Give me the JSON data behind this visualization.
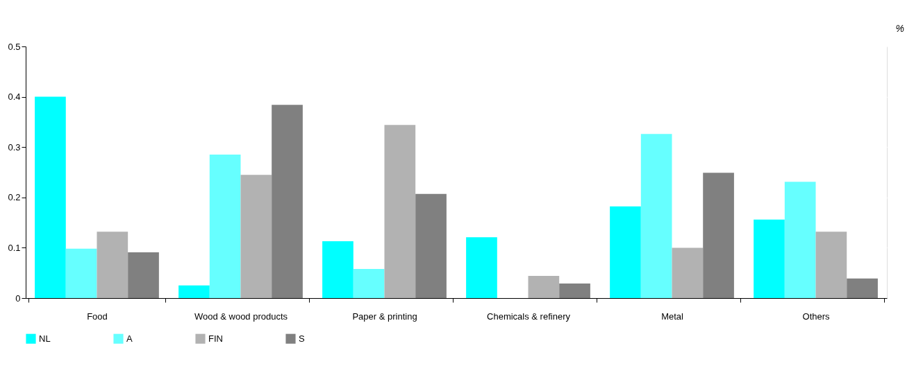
{
  "chart_data": {
    "type": "bar",
    "categories": [
      "Food",
      "Wood & wood products",
      "Paper & printing",
      "Chemicals & refinery",
      "Metal",
      "Others"
    ],
    "series": [
      {
        "name": "NL",
        "color": "#00ffff",
        "values": [
          0.4,
          0.025,
          0.113,
          0.121,
          0.182,
          0.156
        ]
      },
      {
        "name": "A",
        "color": "#66ffff",
        "values": [
          0.098,
          0.285,
          0.058,
          0,
          0.326,
          0.231
        ]
      },
      {
        "name": "FIN",
        "color": "#b2b2b2",
        "values": [
          0.132,
          0.245,
          0.344,
          0.044,
          0.1,
          0.132
        ]
      },
      {
        "name": "S",
        "color": "#808080",
        "values": [
          0.091,
          0.384,
          0.207,
          0.029,
          0.249,
          0.039
        ]
      }
    ],
    "ylim": [
      0,
      0.5
    ],
    "yticks": [
      {
        "value": 0,
        "label": "0"
      },
      0.1,
      0.2,
      0.3,
      0.4,
      0.5
    ],
    "grid": "y",
    "legend": "bottom",
    "annotations": [
      "%"
    ]
  }
}
